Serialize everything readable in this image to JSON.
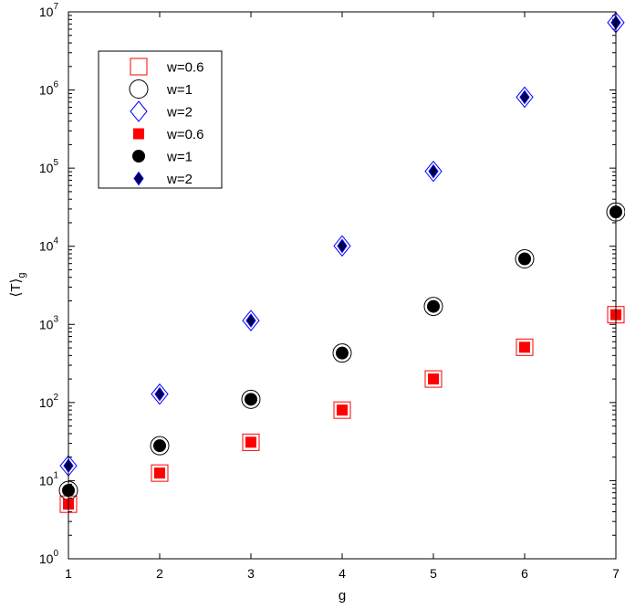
{
  "chart_data": {
    "type": "scatter",
    "xlabel": "g",
    "ylabel": "⟨T⟩",
    "ylabel_sub": "g",
    "xlim": [
      1,
      7
    ],
    "ylim": [
      1,
      10000000
    ],
    "yscale": "log",
    "grid": false,
    "legend_position": "top-left",
    "x_ticks": [
      "1",
      "2",
      "3",
      "4",
      "5",
      "6",
      "7"
    ],
    "y_ticks": [
      {
        "base": "10",
        "exp": "0"
      },
      {
        "base": "10",
        "exp": "1"
      },
      {
        "base": "10",
        "exp": "2"
      },
      {
        "base": "10",
        "exp": "3"
      },
      {
        "base": "10",
        "exp": "4"
      },
      {
        "base": "10",
        "exp": "5"
      },
      {
        "base": "10",
        "exp": "6"
      },
      {
        "base": "10",
        "exp": "7"
      }
    ],
    "series": [
      {
        "name": "w=0.6",
        "marker": "square-open",
        "color": "#ff0000",
        "x": [
          1,
          2,
          3,
          4,
          5,
          6,
          7
        ],
        "y": [
          5,
          12.5,
          31,
          80,
          200,
          510,
          1330
        ]
      },
      {
        "name": "w=1",
        "marker": "circle-open",
        "color": "#000000",
        "x": [
          1,
          2,
          3,
          4,
          5,
          6,
          7
        ],
        "y": [
          7.5,
          28,
          110,
          430,
          1700,
          6900,
          27500
        ]
      },
      {
        "name": "w=2",
        "marker": "diamond-open",
        "color": "#0000ff",
        "x": [
          1,
          2,
          3,
          4,
          5,
          6,
          7
        ],
        "y": [
          15.5,
          128,
          1120,
          10100,
          91000,
          810000,
          7300000
        ]
      },
      {
        "name": "w=0.6",
        "marker": "square-filled",
        "color": "#ff0000",
        "x": [
          1,
          2,
          3,
          4,
          5,
          6,
          7
        ],
        "y": [
          5,
          12.5,
          31,
          80,
          200,
          510,
          1330
        ]
      },
      {
        "name": "w=1",
        "marker": "circle-filled",
        "color": "#000000",
        "x": [
          1,
          2,
          3,
          4,
          5,
          6,
          7
        ],
        "y": [
          7.5,
          28,
          110,
          430,
          1700,
          6900,
          27500
        ]
      },
      {
        "name": "w=2",
        "marker": "diamond-filled",
        "color": "#000044",
        "x": [
          1,
          2,
          3,
          4,
          5,
          6,
          7
        ],
        "y": [
          15.5,
          128,
          1120,
          10100,
          91000,
          810000,
          7300000
        ]
      }
    ]
  }
}
